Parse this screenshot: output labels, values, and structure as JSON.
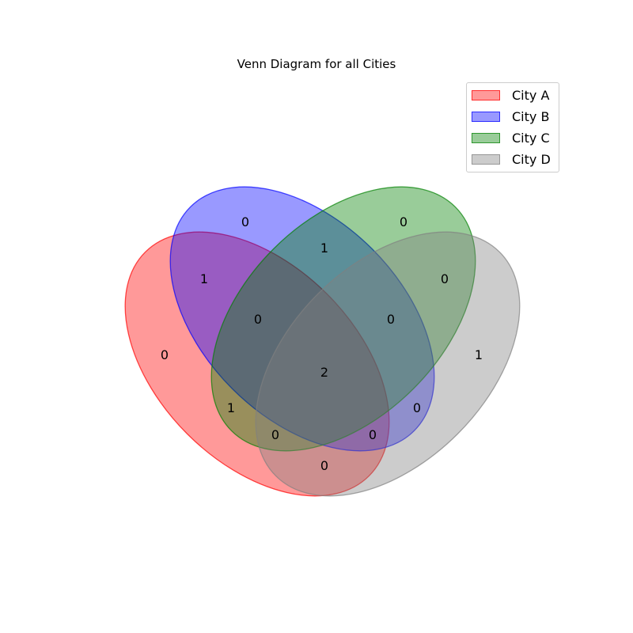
{
  "title": "Venn Diagram for all Cities",
  "sets": [
    {
      "name": "City A",
      "fill": "#ff0000",
      "stroke": "#ff0000"
    },
    {
      "name": "City B",
      "fill": "#0000ff",
      "stroke": "#0000ff"
    },
    {
      "name": "City C",
      "fill": "#008000",
      "stroke": "#008000"
    },
    {
      "name": "City D",
      "fill": "#808080",
      "stroke": "#808080"
    }
  ],
  "regions": {
    "A": "0",
    "B": "0",
    "C": "0",
    "D": "1",
    "AB": "1",
    "BC": "1",
    "CD": "0",
    "AD": "0",
    "AC": "1",
    "BD": "0",
    "ABC": "0",
    "BCD": "0",
    "ACD": "0",
    "ABD": "0",
    "ABCD": "2"
  }
}
